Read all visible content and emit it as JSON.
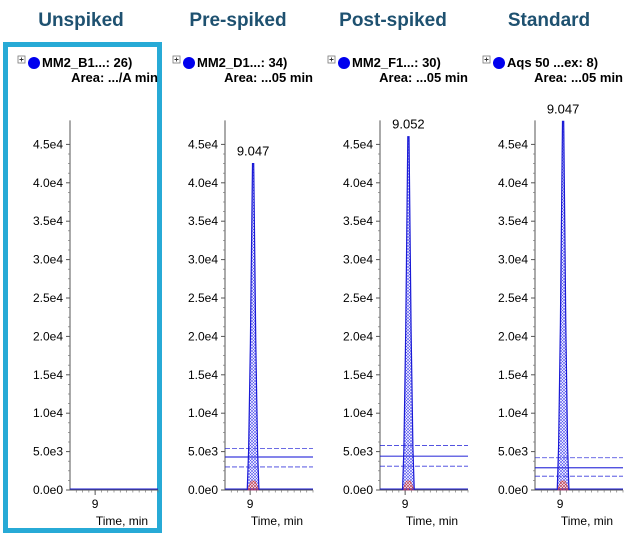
{
  "column_titles": [
    "Unspiked",
    "Pre-spiked",
    "Post-spiked",
    "Standard"
  ],
  "colors": {
    "title": "#1e5170",
    "highlight_border": "#27aad6",
    "trace": "#1a1ad6",
    "marker": "#0000ee",
    "fill_hatch": "#4d4df0",
    "baseline_hatch": "#d23c3c"
  },
  "chart_data": [
    {
      "type": "line",
      "panel_header": "MM2_B1...: 26)",
      "area_text": "Area: .../A min",
      "legend_marker": "blue-circle",
      "highlighted": true,
      "xlabel": "Time, min",
      "x_ticks": [
        "9"
      ],
      "y_ticks": [
        "0.0e0",
        "5.0e3",
        "1.0e4",
        "1.5e4",
        "2.0e4",
        "2.5e4",
        "3.0e4",
        "3.5e4",
        "4.0e4",
        "4.5e4"
      ],
      "ylim": [
        0,
        45000
      ],
      "peak": null,
      "baseline_levels": []
    },
    {
      "type": "line",
      "panel_header": "MM2_D1...: 34)",
      "area_text": "Area: ...05 min",
      "legend_marker": "blue-circle",
      "highlighted": false,
      "xlabel": "Time, min",
      "x_ticks": [
        "9"
      ],
      "y_ticks": [
        "0.0e0",
        "5.0e3",
        "1.0e4",
        "1.5e4",
        "2.0e4",
        "2.5e4",
        "3.0e4",
        "3.5e4",
        "4.0e4",
        "4.5e4"
      ],
      "ylim": [
        0,
        45000
      ],
      "peak": {
        "rt_label": "9.047",
        "x": 9.047,
        "height": 42500
      },
      "baseline_levels": [
        5400,
        4300,
        3000
      ]
    },
    {
      "type": "line",
      "panel_header": "MM2_F1...: 30)",
      "area_text": "Area: ...05 min",
      "legend_marker": "blue-circle",
      "highlighted": false,
      "xlabel": "Time, min",
      "x_ticks": [
        "9"
      ],
      "y_ticks": [
        "0.0e0",
        "5.0e3",
        "1.0e4",
        "1.5e4",
        "2.0e4",
        "2.5e4",
        "3.0e4",
        "3.5e4",
        "4.0e4",
        "4.5e4"
      ],
      "ylim": [
        0,
        45000
      ],
      "peak": {
        "rt_label": "9.052",
        "x": 9.052,
        "height": 46000
      },
      "baseline_levels": [
        5800,
        4400,
        3100
      ]
    },
    {
      "type": "line",
      "panel_header": "Aqs 50 ...ex: 8)",
      "area_text": "Area: ...05 min",
      "legend_marker": "blue-circle",
      "highlighted": false,
      "xlabel": "Time, min",
      "x_ticks": [
        "9"
      ],
      "y_ticks": [
        "0.0e0",
        "5.0e3",
        "1.0e4",
        "1.5e4",
        "2.0e4",
        "2.5e4",
        "3.0e4",
        "3.5e4",
        "4.0e4",
        "4.5e4"
      ],
      "ylim": [
        0,
        45000
      ],
      "peak": {
        "rt_label": "9.047",
        "x": 9.047,
        "height": 48000
      },
      "baseline_levels": [
        4200,
        2900,
        1800
      ]
    }
  ]
}
